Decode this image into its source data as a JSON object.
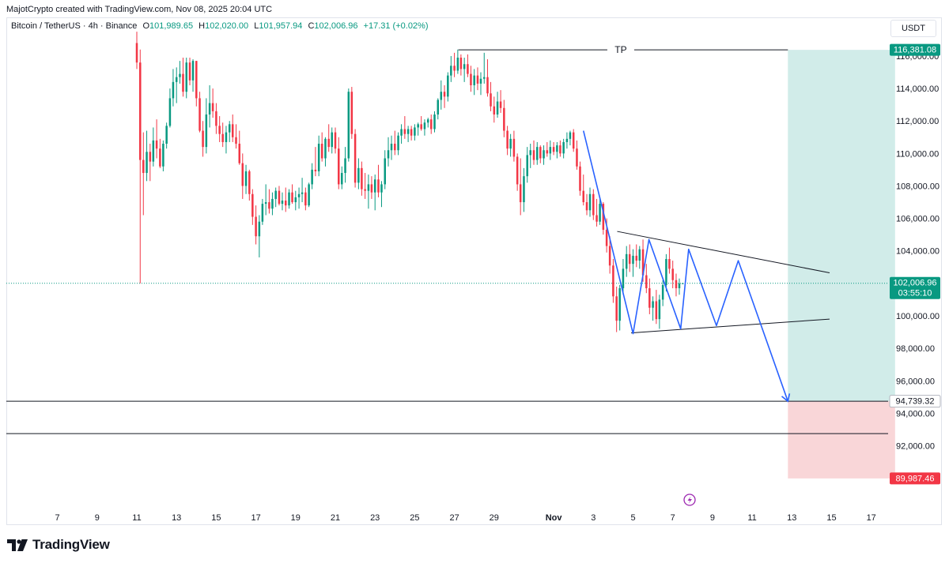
{
  "header": {
    "credit": "MajotCrypto created with TradingView.com, Nov 08, 2025 20:04 UTC"
  },
  "legend": {
    "symbol": "Bitcoin / TetherUS · 4h · Binance",
    "o_label": "O",
    "o": "101,989.65",
    "h_label": "H",
    "h": "102,020.00",
    "l_label": "L",
    "l": "101,957.94",
    "c_label": "C",
    "c": "102,006.96",
    "change": "+17.31 (+0.02%)"
  },
  "currency": "USDT",
  "footer": {
    "brand": "TradingView"
  },
  "colors": {
    "up": "#089981",
    "down": "#f23645",
    "pattern": "#2962ff",
    "line": "#131722",
    "target_zone": "#b2dfdb",
    "stop_zone": "#f7c5c8"
  },
  "icons": [
    "tradingview-logo-icon",
    "lightning-icon"
  ],
  "chart_data": {
    "type": "candlestick",
    "symbol": "Bitcoin / TetherUS",
    "interval": "4h",
    "exchange": "Binance",
    "x_unit": "days since Oct 6, 2025",
    "x_ticks": [
      {
        "x": 1,
        "label": "7"
      },
      {
        "x": 3,
        "label": "9"
      },
      {
        "x": 5,
        "label": "11"
      },
      {
        "x": 7,
        "label": "13"
      },
      {
        "x": 9,
        "label": "15"
      },
      {
        "x": 11,
        "label": "17"
      },
      {
        "x": 13,
        "label": "19"
      },
      {
        "x": 15,
        "label": "21"
      },
      {
        "x": 17,
        "label": "23"
      },
      {
        "x": 19,
        "label": "25"
      },
      {
        "x": 21,
        "label": "27"
      },
      {
        "x": 23,
        "label": "29"
      },
      {
        "x": 26,
        "label": "Nov"
      },
      {
        "x": 28,
        "label": "3"
      },
      {
        "x": 30,
        "label": "5"
      },
      {
        "x": 32,
        "label": "7"
      },
      {
        "x": 34,
        "label": "9"
      },
      {
        "x": 36,
        "label": "11"
      },
      {
        "x": 38,
        "label": "13"
      },
      {
        "x": 40,
        "label": "15"
      },
      {
        "x": 42,
        "label": "17"
      }
    ],
    "y_ticks": [
      "92,000.00",
      "94,000.00",
      "96,000.00",
      "98,000.00",
      "100,000.00",
      "102,000.00",
      "104,000.00",
      "106,000.00",
      "108,000.00",
      "110,000.00",
      "112,000.00",
      "114,000.00",
      "116,000.00"
    ],
    "ylim": [
      88000,
      118000
    ],
    "xlim": [
      0,
      43.3
    ],
    "price_labels": [
      {
        "value": 116381.08,
        "text": "116,381.08",
        "style": "target"
      },
      {
        "value": 102006.96,
        "text": "102,006.96",
        "sub": "03:55:10",
        "style": "last"
      },
      {
        "value": 94739.32,
        "text": "94,739.32",
        "style": "neutral"
      },
      {
        "value": 89987.46,
        "text": "89,987.46",
        "style": "stop"
      }
    ],
    "horizontal_lines": [
      {
        "y": 94739.32
      },
      {
        "y": 92750
      }
    ],
    "tp_line": {
      "x_start": 21.2,
      "x_end": 37.8,
      "y": 116381.08,
      "label": "TP"
    },
    "last_price_line": 102006.96,
    "target_zone": {
      "x_start": 37.8,
      "x_end": 43.2,
      "y_top": 116381.08,
      "y_bottom": 94739.32
    },
    "stop_zone": {
      "x_start": 37.8,
      "x_end": 43.2,
      "y_top": 94739.32,
      "y_bottom": 89987.46
    },
    "triangle": {
      "upper": [
        [
          29.2,
          105200
        ],
        [
          39.9,
          102650
        ]
      ],
      "lower": [
        [
          29.9,
          98950
        ],
        [
          39.9,
          99800
        ]
      ]
    },
    "pattern_path": [
      [
        27.5,
        111400
      ],
      [
        30.0,
        98900
      ],
      [
        30.8,
        104700
      ],
      [
        32.4,
        99200
      ],
      [
        32.8,
        104100
      ],
      [
        34.2,
        99400
      ],
      [
        35.3,
        103400
      ],
      [
        37.8,
        94740
      ]
    ],
    "candles": [
      [
        5.0,
        116800,
        117500,
        115200,
        115600
      ],
      [
        5.17,
        115600,
        116400,
        102000,
        109600
      ],
      [
        5.33,
        109600,
        111300,
        106200,
        108800
      ],
      [
        5.5,
        108800,
        111400,
        108300,
        110100
      ],
      [
        5.67,
        110100,
        110600,
        108300,
        109500
      ],
      [
        5.83,
        109500,
        111600,
        109200,
        110800
      ],
      [
        6.0,
        110800,
        112100,
        109700,
        110300
      ],
      [
        6.17,
        110300,
        110900,
        109100,
        109200
      ],
      [
        6.33,
        109200,
        110800,
        108900,
        110600
      ],
      [
        6.5,
        110600,
        111900,
        110300,
        111700
      ],
      [
        6.67,
        111700,
        114000,
        111600,
        113400
      ],
      [
        6.83,
        113400,
        115200,
        112900,
        114400
      ],
      [
        7.0,
        114400,
        115300,
        113100,
        114700
      ],
      [
        7.17,
        114700,
        115700,
        114300,
        114900
      ],
      [
        7.33,
        114900,
        115900,
        113500,
        113800
      ],
      [
        7.5,
        113800,
        115900,
        113400,
        115600
      ],
      [
        7.67,
        115600,
        115900,
        114200,
        114500
      ],
      [
        7.83,
        114500,
        115800,
        113800,
        115700
      ],
      [
        8.0,
        115700,
        115700,
        112900,
        113400
      ],
      [
        8.17,
        113400,
        113800,
        111300,
        111400
      ],
      [
        8.33,
        111400,
        112000,
        109800,
        110400
      ],
      [
        8.5,
        110400,
        113400,
        110000,
        112400
      ],
      [
        8.67,
        112400,
        114200,
        111600,
        113100
      ],
      [
        8.83,
        113100,
        114000,
        112200,
        112600
      ],
      [
        9.0,
        112600,
        113100,
        111200,
        111700
      ],
      [
        9.17,
        111700,
        112300,
        110700,
        111200
      ],
      [
        9.33,
        111200,
        111900,
        110400,
        110700
      ],
      [
        9.5,
        110700,
        111700,
        110000,
        111300
      ],
      [
        9.67,
        111300,
        112000,
        110700,
        111800
      ],
      [
        9.83,
        111800,
        112400,
        110700,
        111000
      ],
      [
        10.0,
        111000,
        111800,
        110300,
        110600
      ],
      [
        10.17,
        110600,
        111400,
        109300,
        109400
      ],
      [
        10.33,
        109400,
        110000,
        107200,
        108000
      ],
      [
        10.5,
        108000,
        109300,
        107500,
        108900
      ],
      [
        10.67,
        108900,
        109000,
        107100,
        107500
      ],
      [
        10.83,
        107500,
        107800,
        105600,
        106100
      ],
      [
        11.0,
        106100,
        106800,
        104400,
        104900
      ],
      [
        11.17,
        104900,
        106200,
        103600,
        105800
      ],
      [
        11.33,
        105800,
        107200,
        105600,
        106900
      ],
      [
        11.5,
        106900,
        108100,
        106200,
        107000
      ],
      [
        11.67,
        107000,
        107800,
        106300,
        106600
      ],
      [
        11.83,
        106600,
        107600,
        106200,
        107200
      ],
      [
        12.0,
        107200,
        107900,
        106700,
        107700
      ],
      [
        12.17,
        107700,
        108000,
        106800,
        106900
      ],
      [
        12.33,
        106900,
        107600,
        106500,
        107100
      ],
      [
        12.5,
        107100,
        107900,
        106400,
        106800
      ],
      [
        12.67,
        106800,
        107800,
        106600,
        107600
      ],
      [
        12.83,
        107600,
        108100,
        106900,
        107000
      ],
      [
        13.0,
        107000,
        107700,
        106500,
        107300
      ],
      [
        13.17,
        107300,
        107900,
        106600,
        107500
      ],
      [
        13.33,
        107500,
        108500,
        107000,
        107600
      ],
      [
        13.5,
        107600,
        107900,
        106500,
        106800
      ],
      [
        13.67,
        106800,
        108200,
        106700,
        108100
      ],
      [
        13.83,
        108100,
        109400,
        107800,
        109000
      ],
      [
        14.0,
        109000,
        110400,
        108600,
        108900
      ],
      [
        14.17,
        108900,
        111100,
        108600,
        110600
      ],
      [
        14.33,
        110600,
        111300,
        109500,
        109700
      ],
      [
        14.5,
        109700,
        111000,
        109200,
        110900
      ],
      [
        14.67,
        110900,
        111800,
        110100,
        110400
      ],
      [
        14.83,
        110400,
        111600,
        110000,
        111300
      ],
      [
        15.0,
        111300,
        111600,
        110000,
        110300
      ],
      [
        15.17,
        110300,
        111000,
        107800,
        108100
      ],
      [
        15.33,
        108100,
        109200,
        107800,
        108800
      ],
      [
        15.5,
        108800,
        110400,
        108200,
        109700
      ],
      [
        15.67,
        109700,
        114000,
        109500,
        113800
      ],
      [
        15.83,
        113800,
        114100,
        110900,
        111200
      ],
      [
        16.0,
        111200,
        111500,
        107900,
        108200
      ],
      [
        16.17,
        108200,
        109700,
        107800,
        109100
      ],
      [
        16.33,
        109100,
        109500,
        107400,
        107800
      ],
      [
        16.5,
        107800,
        108800,
        107200,
        107700
      ],
      [
        16.67,
        107700,
        108700,
        106600,
        108100
      ],
      [
        16.83,
        108100,
        108600,
        107200,
        107600
      ],
      [
        17.0,
        107600,
        108700,
        106500,
        108400
      ],
      [
        17.17,
        108400,
        109300,
        107300,
        107600
      ],
      [
        17.33,
        107600,
        108300,
        106700,
        108100
      ],
      [
        17.5,
        108100,
        110200,
        107800,
        109700
      ],
      [
        17.67,
        109700,
        111000,
        109200,
        110200
      ],
      [
        17.83,
        110200,
        111100,
        109600,
        110600
      ],
      [
        18.0,
        110600,
        111400,
        109900,
        110200
      ],
      [
        18.17,
        110200,
        111300,
        109900,
        111100
      ],
      [
        18.33,
        111100,
        111800,
        110600,
        111500
      ],
      [
        18.5,
        111500,
        112300,
        110900,
        111200
      ],
      [
        18.67,
        111200,
        111700,
        110700,
        111500
      ],
      [
        18.83,
        111500,
        111700,
        110800,
        111100
      ],
      [
        19.0,
        111100,
        111800,
        110800,
        111600
      ],
      [
        19.17,
        111600,
        111900,
        111100,
        111800
      ],
      [
        19.33,
        111800,
        112300,
        111400,
        111500
      ],
      [
        19.5,
        111500,
        112100,
        111100,
        111900
      ],
      [
        19.67,
        111900,
        112200,
        111600,
        112100
      ],
      [
        19.83,
        112100,
        112400,
        111200,
        111500
      ],
      [
        20.0,
        111500,
        112600,
        111300,
        112400
      ],
      [
        20.17,
        112400,
        113400,
        112100,
        113300
      ],
      [
        20.33,
        113300,
        114500,
        112700,
        113800
      ],
      [
        20.5,
        113800,
        114200,
        112800,
        113500
      ],
      [
        20.67,
        113500,
        115000,
        113200,
        114800
      ],
      [
        20.83,
        114800,
        116000,
        114400,
        115400
      ],
      [
        21.0,
        115400,
        116200,
        114700,
        115100
      ],
      [
        21.17,
        115100,
        116400,
        114900,
        115900
      ],
      [
        21.33,
        115900,
        116100,
        114800,
        115200
      ],
      [
        21.5,
        115200,
        115900,
        114400,
        115500
      ],
      [
        21.67,
        115500,
        116100,
        114700,
        114900
      ],
      [
        21.83,
        114900,
        115400,
        113800,
        114200
      ],
      [
        22.0,
        114200,
        115200,
        113600,
        114800
      ],
      [
        22.17,
        114800,
        115300,
        113900,
        114300
      ],
      [
        22.33,
        114300,
        115000,
        113600,
        114600
      ],
      [
        22.5,
        114600,
        116200,
        114300,
        114700
      ],
      [
        22.67,
        114700,
        115800,
        113500,
        113700
      ],
      [
        22.83,
        113700,
        114400,
        112600,
        112900
      ],
      [
        23.0,
        112900,
        113500,
        111900,
        112400
      ],
      [
        23.17,
        112400,
        113800,
        112200,
        113200
      ],
      [
        23.33,
        113200,
        113900,
        112500,
        112800
      ],
      [
        23.5,
        112800,
        113300,
        111000,
        111400
      ],
      [
        23.67,
        111400,
        111700,
        109900,
        110300
      ],
      [
        23.83,
        110300,
        111200,
        109800,
        110900
      ],
      [
        24.0,
        110900,
        111400,
        109500,
        109800
      ],
      [
        24.17,
        109800,
        110000,
        107700,
        108100
      ],
      [
        24.33,
        108100,
        109700,
        106200,
        107000
      ],
      [
        24.5,
        107000,
        109100,
        106400,
        108600
      ],
      [
        24.67,
        108600,
        110400,
        108200,
        109900
      ],
      [
        24.83,
        109900,
        110600,
        109100,
        110200
      ],
      [
        25.0,
        110200,
        110800,
        109300,
        109600
      ],
      [
        25.17,
        109600,
        110700,
        109300,
        110400
      ],
      [
        25.33,
        110400,
        110500,
        109400,
        109700
      ],
      [
        25.5,
        109700,
        110500,
        109300,
        110200
      ],
      [
        25.67,
        110200,
        110700,
        109800,
        110000
      ],
      [
        25.83,
        110000,
        110800,
        109600,
        110400
      ],
      [
        26.0,
        110400,
        110700,
        109900,
        110100
      ],
      [
        26.17,
        110100,
        110700,
        109700,
        110500
      ],
      [
        26.33,
        110500,
        110800,
        109800,
        110000
      ],
      [
        26.5,
        110000,
        110900,
        109700,
        110700
      ],
      [
        26.67,
        110700,
        111300,
        110300,
        110900
      ],
      [
        26.83,
        110900,
        111400,
        110500,
        111300
      ],
      [
        27.0,
        111300,
        111500,
        110100,
        110300
      ],
      [
        27.17,
        110300,
        110800,
        109000,
        109200
      ],
      [
        27.33,
        109200,
        109500,
        107400,
        107700
      ],
      [
        27.5,
        107700,
        108700,
        106800,
        107000
      ],
      [
        27.67,
        107000,
        107500,
        106200,
        106500
      ],
      [
        27.83,
        106500,
        107900,
        106100,
        107500
      ],
      [
        28.0,
        107500,
        107800,
        105900,
        106200
      ],
      [
        28.17,
        106200,
        107200,
        105500,
        105800
      ],
      [
        28.33,
        105800,
        107300,
        105600,
        106900
      ],
      [
        28.5,
        106900,
        107000,
        105000,
        105300
      ],
      [
        28.67,
        105300,
        106000,
        103900,
        104300
      ],
      [
        28.83,
        104300,
        104900,
        102600,
        103100
      ],
      [
        29.0,
        103100,
        103500,
        100800,
        101200
      ],
      [
        29.17,
        101200,
        101800,
        99000,
        99700
      ],
      [
        29.33,
        99700,
        101900,
        99100,
        101700
      ],
      [
        29.5,
        101700,
        103500,
        101300,
        102900
      ],
      [
        29.67,
        102900,
        104300,
        102400,
        103800
      ],
      [
        29.83,
        103800,
        104400,
        102700,
        103200
      ],
      [
        30.0,
        103200,
        104100,
        102400,
        103700
      ],
      [
        30.17,
        103700,
        104400,
        103000,
        103400
      ],
      [
        30.33,
        103400,
        104300,
        102900,
        104100
      ],
      [
        30.5,
        104100,
        104700,
        102100,
        102500
      ],
      [
        30.67,
        102500,
        103200,
        101400,
        101700
      ],
      [
        30.83,
        101700,
        102300,
        100100,
        100500
      ],
      [
        31.0,
        100500,
        101200,
        99700,
        100900
      ],
      [
        31.17,
        100900,
        101600,
        99500,
        99800
      ],
      [
        31.33,
        99800,
        101300,
        99200,
        101000
      ],
      [
        31.5,
        101000,
        102200,
        100600,
        101900
      ],
      [
        31.67,
        101900,
        103800,
        101500,
        103500
      ],
      [
        31.83,
        103500,
        104200,
        102600,
        102900
      ],
      [
        32.0,
        102900,
        103400,
        101700,
        102200
      ],
      [
        32.17,
        102200,
        102600,
        101200,
        101700
      ],
      [
        32.33,
        101700,
        102300,
        101300,
        101990
      ],
      [
        32.5,
        101990,
        102020,
        101957,
        102007
      ]
    ]
  }
}
